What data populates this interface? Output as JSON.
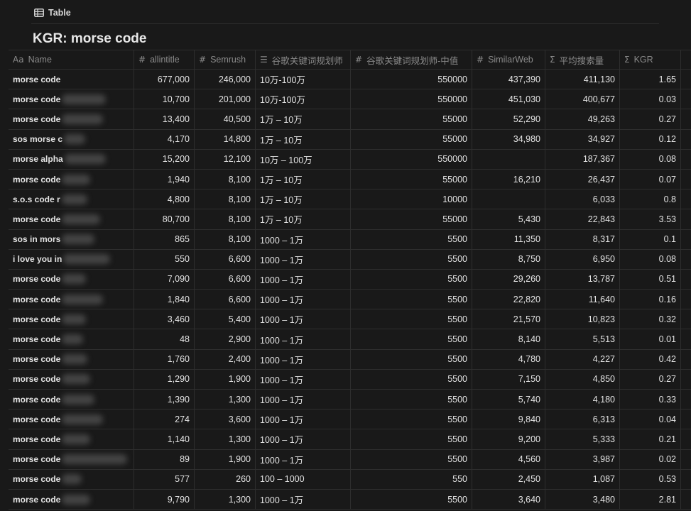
{
  "view": {
    "icon": "table-icon",
    "label": "Table"
  },
  "page": {
    "title": "KGR: morse code"
  },
  "columns": [
    {
      "icon": "Aa",
      "label": "Name"
    },
    {
      "icon": "#",
      "label": "allintitle"
    },
    {
      "icon": "#",
      "label": "Semrush"
    },
    {
      "icon": "☰",
      "label": "谷歌关键词规划师"
    },
    {
      "icon": "#",
      "label": "谷歌关键词规划师-中值"
    },
    {
      "icon": "#",
      "label": "SimilarWeb"
    },
    {
      "icon": "Σ",
      "label": "平均搜索量"
    },
    {
      "icon": "Σ",
      "label": "KGR"
    }
  ],
  "rows": [
    {
      "name": "morse code",
      "blur": 0,
      "allintitle": "677,000",
      "semrush": "246,000",
      "planner": "10万-100万",
      "planner_mid": "550000",
      "similarweb": "437,390",
      "avg": "411,130",
      "kgr": "1.65"
    },
    {
      "name": "morse code",
      "blur": 62,
      "allintitle": "10,700",
      "semrush": "201,000",
      "planner": "10万-100万",
      "planner_mid": "550000",
      "similarweb": "451,030",
      "avg": "400,677",
      "kgr": "0.03"
    },
    {
      "name": "morse code",
      "blur": 58,
      "allintitle": "13,400",
      "semrush": "40,500",
      "planner": "1万 – 10万",
      "planner_mid": "55000",
      "similarweb": "52,290",
      "avg": "49,263",
      "kgr": "0.27"
    },
    {
      "name": "sos morse c",
      "blur": 30,
      "allintitle": "4,170",
      "semrush": "14,800",
      "planner": "1万 – 10万",
      "planner_mid": "55000",
      "similarweb": "34,980",
      "avg": "34,927",
      "kgr": "0.12"
    },
    {
      "name": "morse alpha",
      "blur": 58,
      "allintitle": "15,200",
      "semrush": "12,100",
      "planner": "10万 – 100万",
      "planner_mid": "550000",
      "similarweb": "",
      "avg": "187,367",
      "kgr": "0.08"
    },
    {
      "name": "morse code",
      "blur": 40,
      "allintitle": "1,940",
      "semrush": "8,100",
      "planner": "1万 – 10万",
      "planner_mid": "55000",
      "similarweb": "16,210",
      "avg": "26,437",
      "kgr": "0.07"
    },
    {
      "name": "s.o.s code r",
      "blur": 36,
      "allintitle": "4,800",
      "semrush": "8,100",
      "planner": "1万 – 10万",
      "planner_mid": "10000",
      "similarweb": "",
      "avg": "6,033",
      "kgr": "0.8"
    },
    {
      "name": "morse code",
      "blur": 54,
      "allintitle": "80,700",
      "semrush": "8,100",
      "planner": "1万 – 10万",
      "planner_mid": "55000",
      "similarweb": "5,430",
      "avg": "22,843",
      "kgr": "3.53"
    },
    {
      "name": "sos in mors",
      "blur": 46,
      "allintitle": "865",
      "semrush": "8,100",
      "planner": "1000 – 1万",
      "planner_mid": "5500",
      "similarweb": "11,350",
      "avg": "8,317",
      "kgr": "0.1"
    },
    {
      "name": "i love you in",
      "blur": 66,
      "allintitle": "550",
      "semrush": "6,600",
      "planner": "1000 – 1万",
      "planner_mid": "5500",
      "similarweb": "8,750",
      "avg": "6,950",
      "kgr": "0.08"
    },
    {
      "name": "morse code",
      "blur": 34,
      "allintitle": "7,090",
      "semrush": "6,600",
      "planner": "1000 – 1万",
      "planner_mid": "5500",
      "similarweb": "29,260",
      "avg": "13,787",
      "kgr": "0.51"
    },
    {
      "name": "morse code",
      "blur": 58,
      "allintitle": "1,840",
      "semrush": "6,600",
      "planner": "1000 – 1万",
      "planner_mid": "5500",
      "similarweb": "22,820",
      "avg": "11,640",
      "kgr": "0.16"
    },
    {
      "name": "morse code",
      "blur": 34,
      "allintitle": "3,460",
      "semrush": "5,400",
      "planner": "1000 – 1万",
      "planner_mid": "5500",
      "similarweb": "21,570",
      "avg": "10,823",
      "kgr": "0.32"
    },
    {
      "name": "morse code",
      "blur": 30,
      "allintitle": "48",
      "semrush": "2,900",
      "planner": "1000 – 1万",
      "planner_mid": "5500",
      "similarweb": "8,140",
      "avg": "5,513",
      "kgr": "0.01"
    },
    {
      "name": "morse code",
      "blur": 36,
      "allintitle": "1,760",
      "semrush": "2,400",
      "planner": "1000 – 1万",
      "planner_mid": "5500",
      "similarweb": "4,780",
      "avg": "4,227",
      "kgr": "0.42"
    },
    {
      "name": "morse code",
      "blur": 40,
      "allintitle": "1,290",
      "semrush": "1,900",
      "planner": "1000 – 1万",
      "planner_mid": "5500",
      "similarweb": "7,150",
      "avg": "4,850",
      "kgr": "0.27"
    },
    {
      "name": "morse code",
      "blur": 46,
      "allintitle": "1,390",
      "semrush": "1,300",
      "planner": "1000 – 1万",
      "planner_mid": "5500",
      "similarweb": "5,740",
      "avg": "4,180",
      "kgr": "0.33"
    },
    {
      "name": "morse code",
      "blur": 58,
      "allintitle": "274",
      "semrush": "3,600",
      "planner": "1000 – 1万",
      "planner_mid": "5500",
      "similarweb": "9,840",
      "avg": "6,313",
      "kgr": "0.04"
    },
    {
      "name": "morse code",
      "blur": 40,
      "allintitle": "1,140",
      "semrush": "1,300",
      "planner": "1000 – 1万",
      "planner_mid": "5500",
      "similarweb": "9,200",
      "avg": "5,333",
      "kgr": "0.21"
    },
    {
      "name": "morse code",
      "blur": 92,
      "allintitle": "89",
      "semrush": "1,900",
      "planner": "1000 – 1万",
      "planner_mid": "5500",
      "similarweb": "4,560",
      "avg": "3,987",
      "kgr": "0.02"
    },
    {
      "name": "morse code",
      "blur": 28,
      "allintitle": "577",
      "semrush": "260",
      "planner": "100 – 1000",
      "planner_mid": "550",
      "similarweb": "2,450",
      "avg": "1,087",
      "kgr": "0.53"
    },
    {
      "name": "morse code",
      "blur": 40,
      "allintitle": "9,790",
      "semrush": "1,300",
      "planner": "1000 – 1万",
      "planner_mid": "5500",
      "similarweb": "3,640",
      "avg": "3,480",
      "kgr": "2.81"
    }
  ]
}
